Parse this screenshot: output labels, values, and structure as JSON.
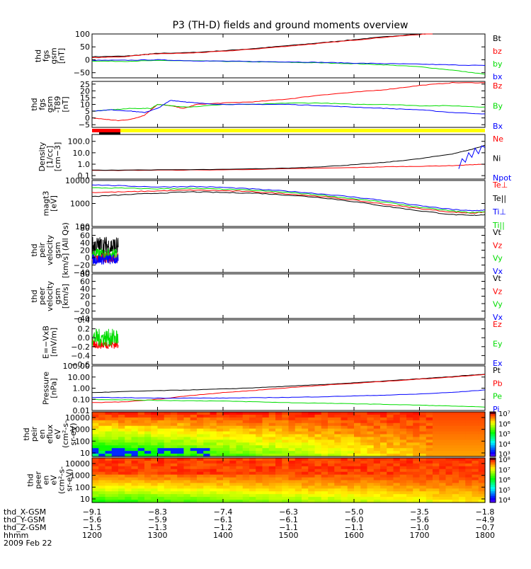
{
  "title": "P3 (TH-D) fields and ground moments overview",
  "chart_data": [
    {
      "type": "line",
      "ylabel": [
        "thd",
        "fgs",
        "gsm",
        "[nT]"
      ],
      "ylim": [
        -70,
        100
      ],
      "scale": "linear",
      "yticks": [
        {
          "v": 100,
          "l": "100"
        },
        {
          "v": 50,
          "l": "50"
        },
        {
          "v": 0,
          "l": "0"
        },
        {
          "v": -50,
          "l": "−50"
        }
      ],
      "series": [
        {
          "name": "Bt",
          "color": "#000000",
          "x": [
            1200,
            1250,
            1280,
            1300,
            1350,
            1400,
            1450,
            1500,
            1550,
            1600,
            1650,
            1700,
            1720
          ],
          "y": [
            12,
            14,
            20,
            25,
            28,
            35,
            44,
            55,
            66,
            78,
            90,
            100,
            104
          ]
        },
        {
          "name": "bz",
          "color": "#ff0000",
          "x": [
            1200,
            1250,
            1280,
            1300,
            1350,
            1400,
            1450,
            1500,
            1550,
            1600,
            1650,
            1700,
            1720
          ],
          "y": [
            8,
            12,
            20,
            23,
            26,
            33,
            42,
            53,
            64,
            76,
            88,
            98,
            102
          ]
        },
        {
          "name": "by",
          "color": "#00dd00",
          "x": [
            1200,
            1250,
            1300,
            1350,
            1400,
            1450,
            1500,
            1550,
            1600,
            1650,
            1700,
            1750,
            1800
          ],
          "y": [
            -5,
            -6,
            -3,
            -4,
            -6,
            -8,
            -10,
            -12,
            -15,
            -20,
            -27,
            -40,
            -56
          ]
        },
        {
          "name": "bx",
          "color": "#0000ff",
          "x": [
            1200,
            1250,
            1300,
            1350,
            1400,
            1450,
            1500,
            1550,
            1600,
            1650,
            1700,
            1750,
            1800
          ],
          "y": [
            -2,
            -2,
            0,
            -4,
            -5,
            -7,
            -8,
            -10,
            -13,
            -15,
            -17,
            -20,
            -22
          ]
        }
      ]
    },
    {
      "type": "line",
      "ylabel": [
        "thd",
        "fgs",
        "gsm",
        "-T89",
        "[nT]"
      ],
      "ylim": [
        -7,
        27
      ],
      "scale": "linear",
      "yticks": [
        {
          "v": 25,
          "l": "25"
        },
        {
          "v": 20,
          "l": "20"
        },
        {
          "v": 15,
          "l": "15"
        },
        {
          "v": 10,
          "l": "10"
        },
        {
          "v": 5,
          "l": "5"
        },
        {
          "v": 0,
          "l": "0"
        },
        {
          "v": -5,
          "l": "−5"
        }
      ],
      "series": [
        {
          "name": "Bz",
          "color": "#ff0000",
          "x": [
            1200,
            1220,
            1240,
            1260,
            1280,
            1300,
            1320,
            1340,
            1360,
            1400,
            1450,
            1500,
            1550,
            1600,
            1650,
            1700,
            1750,
            1800
          ],
          "y": [
            0,
            -1,
            -2,
            -1,
            2,
            10,
            9,
            7,
            10,
            11,
            12,
            14,
            17,
            19,
            21,
            24,
            26,
            26
          ]
        },
        {
          "name": "By",
          "color": "#00dd00",
          "x": [
            1200,
            1230,
            1260,
            1290,
            1300,
            1320,
            1350,
            1400,
            1450,
            1500,
            1550,
            1600,
            1650,
            1700,
            1750,
            1800
          ],
          "y": [
            5,
            6,
            7,
            7,
            10,
            9,
            8,
            10,
            10,
            11,
            11,
            10,
            10,
            9,
            9,
            8
          ]
        },
        {
          "name": "Bx",
          "color": "#0000ff",
          "x": [
            1200,
            1230,
            1260,
            1280,
            1300,
            1320,
            1340,
            1360,
            1400,
            1450,
            1500,
            1550,
            1600,
            1650,
            1700,
            1750,
            1800
          ],
          "y": [
            5,
            6,
            5,
            4,
            7,
            13,
            12,
            11,
            10,
            10,
            10,
            9,
            8,
            7,
            6,
            4,
            3
          ]
        }
      ]
    },
    {
      "type": "line",
      "ylabel": [
        "Density",
        "[1/cc]",
        "[cm−3]"
      ],
      "ylim": [
        0.05,
        400
      ],
      "scale": "log",
      "yticks": [
        {
          "v": 100,
          "l": "100.0"
        },
        {
          "v": 10,
          "l": "10.0"
        },
        {
          "v": 1,
          "l": "1.0"
        },
        {
          "v": 0.1,
          "l": "0.1"
        }
      ],
      "series": [
        {
          "name": "Ne",
          "color": "#ff0000",
          "x": [
            1200,
            1300,
            1400,
            1500,
            1600,
            1650,
            1700,
            1750,
            1780,
            1800
          ],
          "y": [
            0.28,
            0.3,
            0.32,
            0.4,
            0.5,
            0.6,
            0.65,
            0.75,
            0.9,
            1.0
          ]
        },
        {
          "name": "Ni",
          "color": "#000000",
          "x": [
            1200,
            1300,
            1400,
            1500,
            1550,
            1600,
            1650,
            1700,
            1750,
            1780,
            1800
          ],
          "y": [
            0.3,
            0.32,
            0.35,
            0.45,
            0.6,
            0.9,
            1.5,
            3,
            8,
            20,
            45
          ]
        },
        {
          "name": "Npot",
          "color": "#0000ff",
          "x": [
            1760,
            1765,
            1770,
            1775,
            1780,
            1785,
            1790,
            1795,
            1800
          ],
          "y": [
            0.4,
            3,
            1.5,
            10,
            4,
            25,
            8,
            40,
            30
          ]
        }
      ]
    },
    {
      "type": "line",
      "ylabel": [
        "magt3",
        "[eV]"
      ],
      "ylim": [
        100,
        10000
      ],
      "scale": "log",
      "yticks": [
        {
          "v": 10000,
          "l": "10000"
        },
        {
          "v": 1000,
          "l": "1000"
        },
        {
          "v": 100,
          "l": "100"
        }
      ],
      "series": [
        {
          "name": "Te⊥",
          "color": "#ff0000",
          "x": [
            1200,
            1250,
            1300,
            1350,
            1400,
            1450,
            1500,
            1550,
            1600,
            1650,
            1700,
            1750,
            1780,
            1800
          ],
          "y": [
            3000,
            3200,
            3500,
            3800,
            3600,
            3200,
            2600,
            2000,
            1400,
            900,
            600,
            420,
            380,
            420
          ]
        },
        {
          "name": "Te||",
          "color": "#000000",
          "x": [
            1200,
            1250,
            1300,
            1350,
            1400,
            1450,
            1500,
            1550,
            1600,
            1650,
            1700,
            1750,
            1780,
            1800
          ],
          "y": [
            2000,
            2400,
            2800,
            3200,
            3000,
            2800,
            2300,
            1800,
            1200,
            750,
            480,
            330,
            300,
            330
          ]
        },
        {
          "name": "Ti⊥",
          "color": "#0000ff",
          "x": [
            1200,
            1250,
            1300,
            1350,
            1400,
            1450,
            1500,
            1550,
            1600,
            1650,
            1700,
            1750,
            1780,
            1800
          ],
          "y": [
            6500,
            5800,
            5200,
            5500,
            5000,
            4200,
            3400,
            2600,
            1900,
            1300,
            800,
            550,
            480,
            520
          ]
        },
        {
          "name": "Ti||",
          "color": "#00dd00",
          "x": [
            1200,
            1250,
            1300,
            1350,
            1400,
            1450,
            1500,
            1550,
            1600,
            1650,
            1700,
            1750,
            1780,
            1800
          ],
          "y": [
            4800,
            4600,
            4300,
            4500,
            4200,
            3700,
            3000,
            2300,
            1600,
            1100,
            680,
            470,
            400,
            440
          ]
        }
      ]
    },
    {
      "type": "line",
      "ylabel": [
        "thd",
        "peir",
        "velocity",
        "gsm",
        "[km/s] (All Qs)"
      ],
      "ylim": [
        -40,
        80
      ],
      "scale": "linear",
      "yticks": [
        {
          "v": 80,
          "l": "80"
        },
        {
          "v": 60,
          "l": "60"
        },
        {
          "v": 40,
          "l": "40"
        },
        {
          "v": 20,
          "l": "20"
        },
        {
          "v": 0,
          "l": "0"
        },
        {
          "v": -20,
          "l": "−20"
        },
        {
          "v": -40,
          "l": "−40"
        }
      ],
      "series": [
        {
          "name": "Vt",
          "color": "#000000",
          "x": [
            1200,
            1240
          ],
          "y": [
            30,
            30
          ],
          "noise": 28
        },
        {
          "name": "Vz",
          "color": "#ff0000",
          "x": [
            1200,
            1240
          ],
          "y": [
            0,
            0
          ],
          "noise": 15
        },
        {
          "name": "Vy",
          "color": "#00dd00",
          "x": [
            1200,
            1240
          ],
          "y": [
            10,
            10
          ],
          "noise": 15
        },
        {
          "name": "Vx",
          "color": "#0000ff",
          "x": [
            1200,
            1240
          ],
          "y": [
            -5,
            -5
          ],
          "noise": 14
        }
      ]
    },
    {
      "type": "line",
      "ylabel": [
        "thd",
        "peer",
        "velocity",
        "gsm",
        "[km/s]"
      ],
      "ylim": [
        -40,
        80
      ],
      "scale": "linear",
      "yticks": [
        {
          "v": 80,
          "l": "80"
        },
        {
          "v": 60,
          "l": "60"
        },
        {
          "v": 40,
          "l": "40"
        },
        {
          "v": 20,
          "l": "20"
        },
        {
          "v": 0,
          "l": "0"
        },
        {
          "v": -20,
          "l": "−20"
        },
        {
          "v": -40,
          "l": "−40"
        }
      ],
      "series": [
        {
          "name": "Vt",
          "color": "#000000",
          "x": [],
          "y": []
        },
        {
          "name": "Vz",
          "color": "#ff0000",
          "x": [],
          "y": []
        },
        {
          "name": "Vy",
          "color": "#00dd00",
          "x": [],
          "y": []
        },
        {
          "name": "Vx",
          "color": "#0000ff",
          "x": [],
          "y": []
        }
      ]
    },
    {
      "type": "line",
      "ylabel": [
        "E=−VxB",
        "[mV/m]"
      ],
      "ylim": [
        -0.6,
        0.4
      ],
      "scale": "linear",
      "yticks": [
        {
          "v": 0.4,
          "l": "0.4"
        },
        {
          "v": 0.2,
          "l": "0.2"
        },
        {
          "v": 0,
          "l": "0.0"
        },
        {
          "v": -0.2,
          "l": "−0.2"
        },
        {
          "v": -0.4,
          "l": "−0.4"
        },
        {
          "v": -0.6,
          "l": "−0.6"
        }
      ],
      "series": [
        {
          "name": "Ez",
          "color": "#ff0000",
          "x": [
            1200,
            1240
          ],
          "y": [
            -0.15,
            -0.15
          ],
          "noise": 0.1
        },
        {
          "name": "Ey",
          "color": "#00dd00",
          "x": [
            1200,
            1240
          ],
          "y": [
            0,
            0
          ],
          "noise": 0.2
        },
        {
          "name": "Ex",
          "color": "#0000ff",
          "x": [],
          "y": []
        }
      ]
    },
    {
      "type": "line",
      "ylabel": [
        "Pressure",
        "[nPa]"
      ],
      "ylim": [
        0.01,
        100
      ],
      "scale": "log",
      "yticks": [
        {
          "v": 100,
          "l": "100.00"
        },
        {
          "v": 10,
          "l": "10.00"
        },
        {
          "v": 1,
          "l": "1.00"
        },
        {
          "v": 0.1,
          "l": "0.10"
        },
        {
          "v": 0.01,
          "l": "0.01"
        }
      ],
      "series": [
        {
          "name": "Pt",
          "color": "#000000",
          "x": [
            1200,
            1250,
            1300,
            1350,
            1400,
            1450,
            1500,
            1550,
            1600,
            1650,
            1700,
            1750,
            1800
          ],
          "y": [
            0.4,
            0.5,
            0.6,
            0.7,
            0.85,
            1.1,
            1.5,
            2.1,
            3,
            4.5,
            7,
            11,
            18
          ]
        },
        {
          "name": "Pb",
          "color": "#ff0000",
          "x": [
            1200,
            1250,
            1300,
            1350,
            1400,
            1450,
            1500,
            1550,
            1600,
            1650,
            1700,
            1750,
            1800
          ],
          "y": [
            0.05,
            0.06,
            0.1,
            0.22,
            0.4,
            0.65,
            1.1,
            1.8,
            2.7,
            4.2,
            6.5,
            10,
            17
          ]
        },
        {
          "name": "Pe",
          "color": "#00dd00",
          "x": [
            1200,
            1250,
            1300,
            1350,
            1400,
            1450,
            1500,
            1550,
            1600,
            1650,
            1700,
            1750,
            1800
          ],
          "y": [
            0.1,
            0.09,
            0.08,
            0.075,
            0.07,
            0.06,
            0.05,
            0.045,
            0.04,
            0.035,
            0.03,
            0.025,
            0.02
          ]
        },
        {
          "name": "Pi",
          "color": "#0000ff",
          "x": [
            1200,
            1250,
            1300,
            1350,
            1400,
            1450,
            1500,
            1550,
            1600,
            1650,
            1700,
            1750,
            1800
          ],
          "y": [
            0.15,
            0.14,
            0.13,
            0.13,
            0.13,
            0.14,
            0.15,
            0.17,
            0.2,
            0.24,
            0.3,
            0.42,
            0.7
          ]
        }
      ]
    },
    {
      "type": "heatmap",
      "ylabel": [
        "thd",
        "peir",
        "en",
        "eflux",
        "eV",
        "(cm²-s-",
        "sr-eV)"
      ],
      "ylim": [
        5,
        30000
      ],
      "scale": "log",
      "yticks": [
        {
          "v": 10000,
          "l": "10000"
        },
        {
          "v": 1000,
          "l": "1000"
        },
        {
          "v": 100,
          "l": "100"
        },
        {
          "v": 10,
          "l": "10"
        }
      ],
      "colorbar": {
        "labels": [
          "10⁷",
          "10⁶",
          "10⁵",
          "10⁴",
          "10³"
        ]
      }
    },
    {
      "type": "heatmap",
      "ylabel": [
        "thd",
        "peer",
        "en",
        "eV",
        "(cm²-s-",
        "sr-eV)"
      ],
      "ylim": [
        5,
        30000
      ],
      "scale": "log",
      "yticks": [
        {
          "v": 10000,
          "l": "10000"
        },
        {
          "v": 1000,
          "l": "1000"
        },
        {
          "v": 100,
          "l": "100"
        },
        {
          "v": 10,
          "l": "10"
        }
      ],
      "colorbar": {
        "labels": [
          "10⁸",
          "10⁷",
          "10⁶",
          "10⁵",
          "10⁴"
        ]
      }
    }
  ],
  "axis": {
    "rows": [
      {
        "label": "thd_X-GSM",
        "values": [
          "−9.1",
          "−8.3",
          "−7.4",
          "−6.3",
          "−5.0",
          "−3.5",
          "−1.8"
        ]
      },
      {
        "label": "thd_Y-GSM",
        "values": [
          "−5.6",
          "−5.9",
          "−6.1",
          "−6.1",
          "−6.0",
          "−5.6",
          "−4.9"
        ]
      },
      {
        "label": "thd_Z-GSM",
        "values": [
          "−1.5",
          "−1.3",
          "−1.2",
          "−1.1",
          "−1.1",
          "−1.0",
          "−0.7"
        ]
      },
      {
        "label": "hhmm",
        "values": [
          "1200",
          "1300",
          "1400",
          "1500",
          "1600",
          "1700",
          "1800"
        ]
      }
    ],
    "date": "2009 Feb 22",
    "tick_times": [
      1200,
      1300,
      1400,
      1500,
      1600,
      1700,
      1800
    ]
  }
}
